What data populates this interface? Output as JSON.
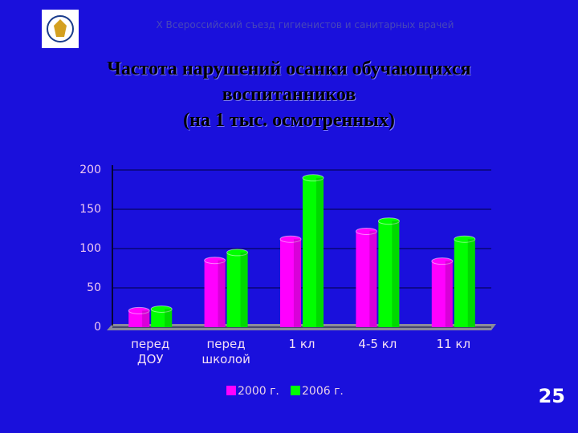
{
  "header": "X Всероссийский съезд гигиенистов и санитарных врачей",
  "page_number": "25",
  "chart_data": {
    "type": "bar",
    "title": "Частота нарушений осанки обучающихся\nвоспитанников\n(на 1 тыс. осмотренных)",
    "categories": [
      "перед\nДОУ",
      "перед\nшколой",
      "1 кл",
      "4-5 кл",
      "11 кл"
    ],
    "series": [
      {
        "name": "2000 г.",
        "color": "#ff00ff",
        "values": [
          21,
          85,
          112,
          122,
          84
        ]
      },
      {
        "name": "2006 г.",
        "color": "#00ff00",
        "values": [
          23,
          95,
          190,
          135,
          112
        ]
      }
    ],
    "ylim": [
      0,
      200
    ],
    "yticks": [
      0,
      50,
      100,
      150,
      200
    ],
    "grid": true
  }
}
